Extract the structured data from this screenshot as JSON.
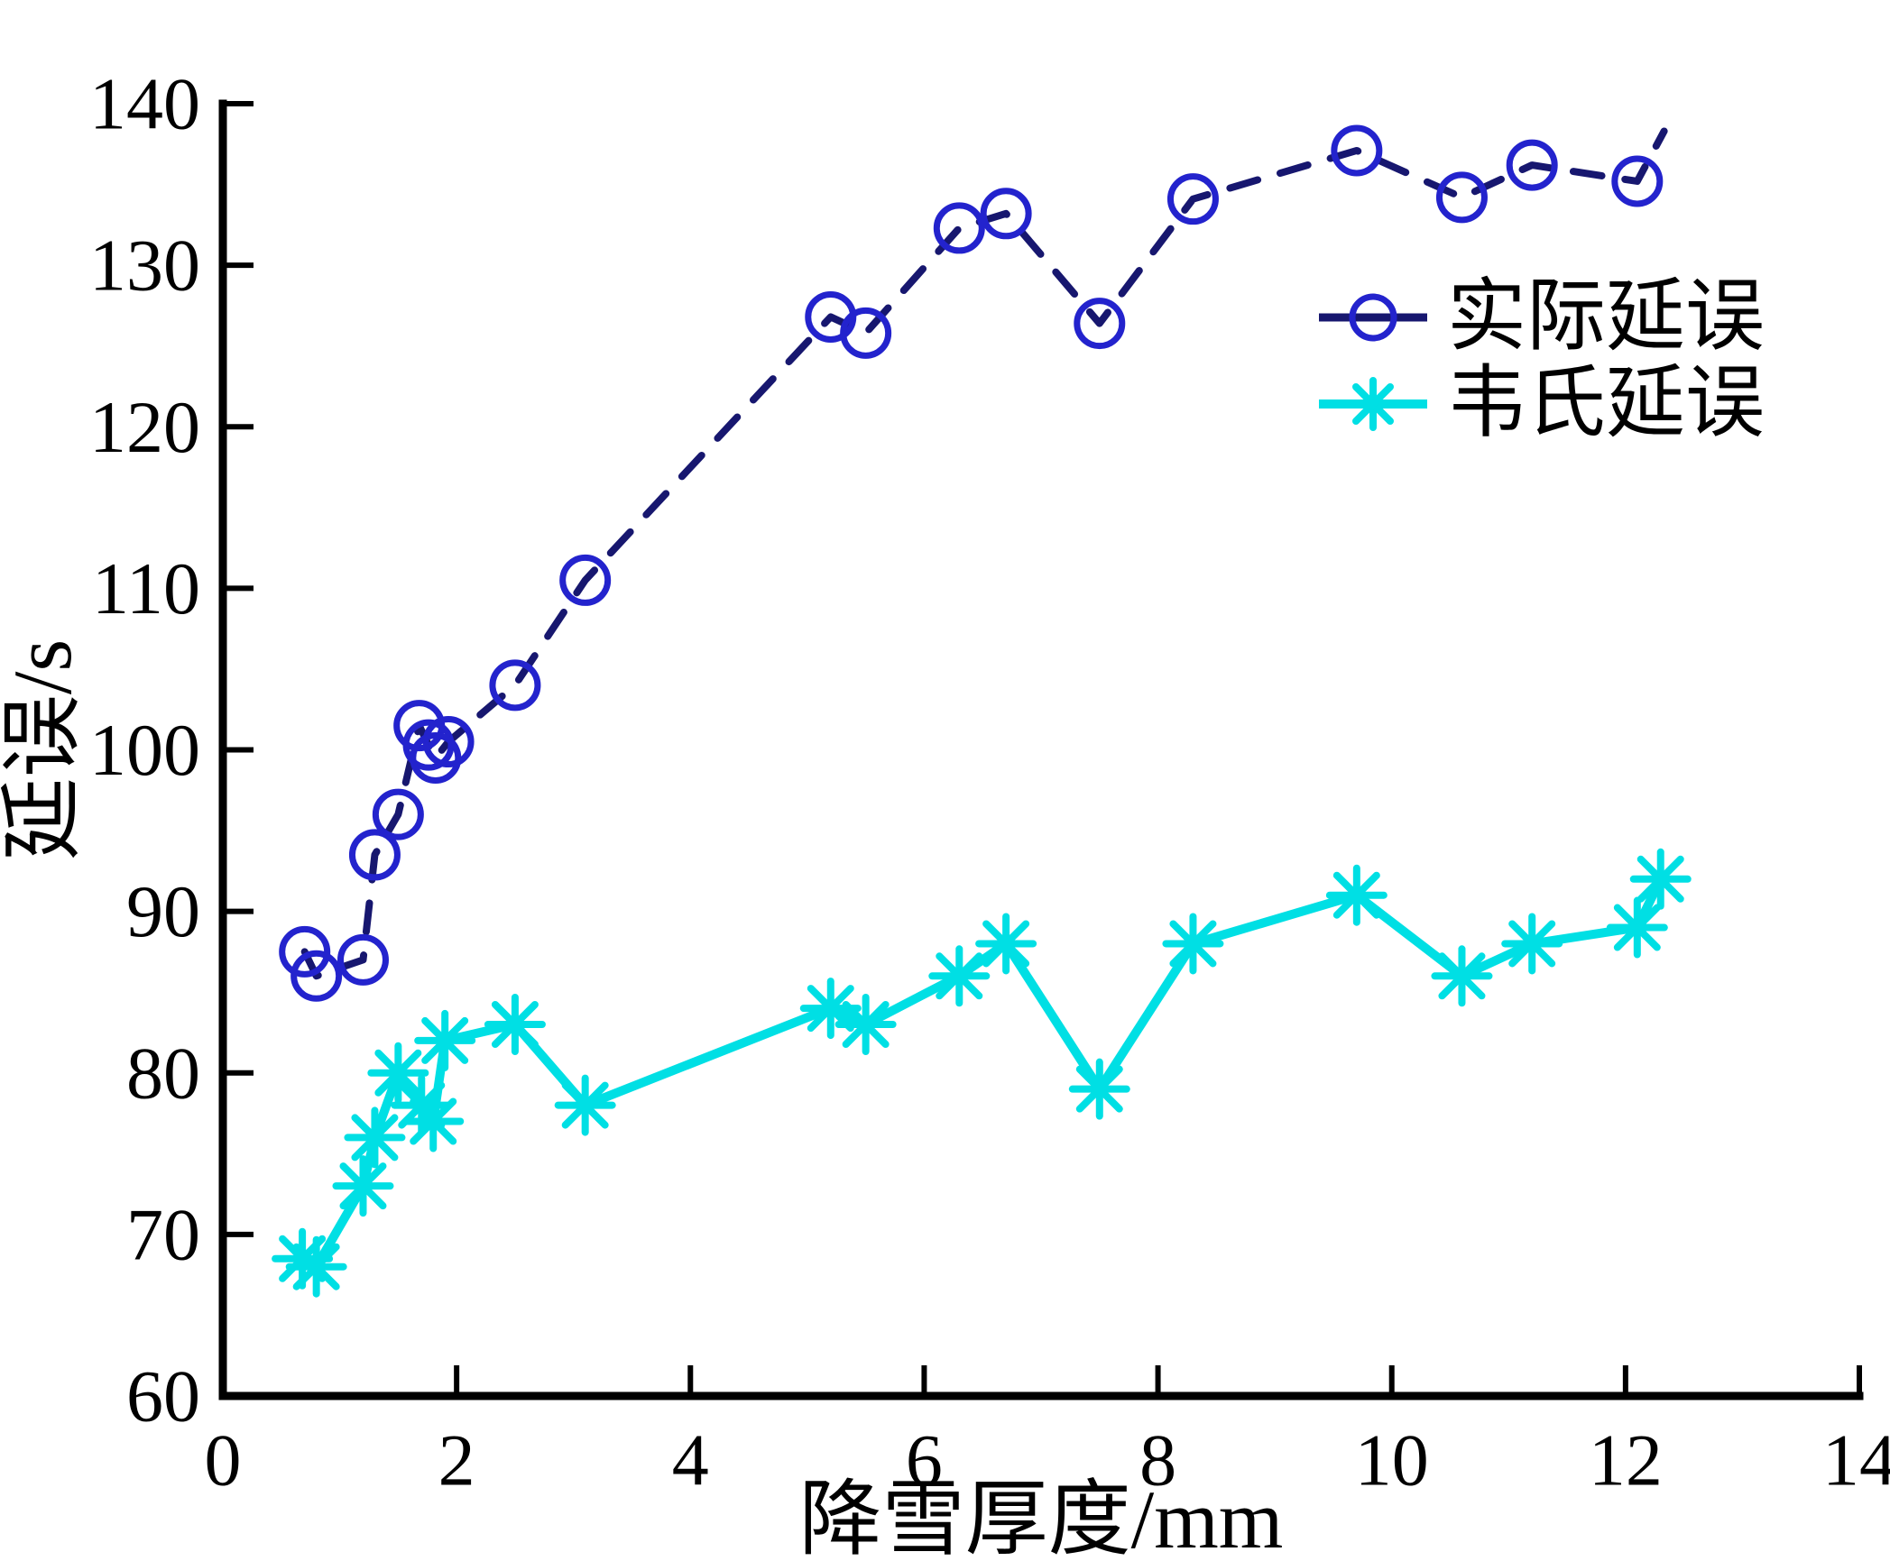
{
  "figure": {
    "background": "#ffffff",
    "axis_color": "#000000"
  },
  "chart_data": {
    "type": "line",
    "title": "",
    "xlabel": "降雪厚度/mm",
    "ylabel": "延误/s",
    "xlim": [
      0,
      14
    ],
    "ylim": [
      60,
      140
    ],
    "xticks": [
      0,
      2,
      4,
      6,
      8,
      10,
      12,
      14
    ],
    "yticks": [
      60,
      70,
      80,
      90,
      100,
      110,
      120,
      130,
      140
    ],
    "grid": false,
    "legend": {
      "position": "top-right-inside",
      "border": false
    },
    "series": [
      {
        "name": "实际延误",
        "marker": "circle",
        "line_style": "dashed",
        "line_color": "#17176f",
        "marker_color": "#2323cd",
        "points": [
          [
            0.7,
            87.5
          ],
          [
            0.8,
            86
          ],
          [
            1.2,
            87
          ],
          [
            1.3,
            93.5
          ],
          [
            1.5,
            96
          ],
          [
            1.68,
            101.5
          ],
          [
            1.76,
            100.3
          ],
          [
            1.82,
            99.5
          ],
          [
            1.93,
            100.5
          ],
          [
            2.5,
            104
          ],
          [
            3.1,
            110.5
          ],
          [
            5.2,
            126.8
          ],
          [
            5.5,
            125.8
          ],
          [
            6.3,
            132.3
          ],
          [
            6.7,
            133.2
          ],
          [
            7.5,
            126.4
          ],
          [
            8.3,
            134.1
          ],
          [
            9.7,
            137.1
          ],
          [
            10.6,
            134.2
          ],
          [
            11.2,
            136.2
          ],
          [
            12.1,
            135.2
          ]
        ],
        "line_tail": [
          12.33,
          138.3
        ]
      },
      {
        "name": "韦氏延误",
        "marker": "asterisk",
        "line_style": "solid",
        "line_color": "#00dfe4",
        "marker_color": "#00dfe4",
        "points": [
          [
            0.68,
            68.5
          ],
          [
            0.8,
            68
          ],
          [
            1.2,
            73
          ],
          [
            1.3,
            76
          ],
          [
            1.5,
            80
          ],
          [
            1.7,
            78
          ],
          [
            1.8,
            77
          ],
          [
            1.9,
            82
          ],
          [
            2.5,
            83
          ],
          [
            3.1,
            78
          ],
          [
            5.2,
            84
          ],
          [
            5.5,
            83
          ],
          [
            6.3,
            86
          ],
          [
            6.7,
            88
          ],
          [
            7.5,
            79
          ],
          [
            8.3,
            88
          ],
          [
            9.7,
            91
          ],
          [
            10.6,
            86
          ],
          [
            11.2,
            88
          ],
          [
            12.1,
            89
          ],
          [
            12.3,
            92
          ]
        ]
      }
    ]
  }
}
